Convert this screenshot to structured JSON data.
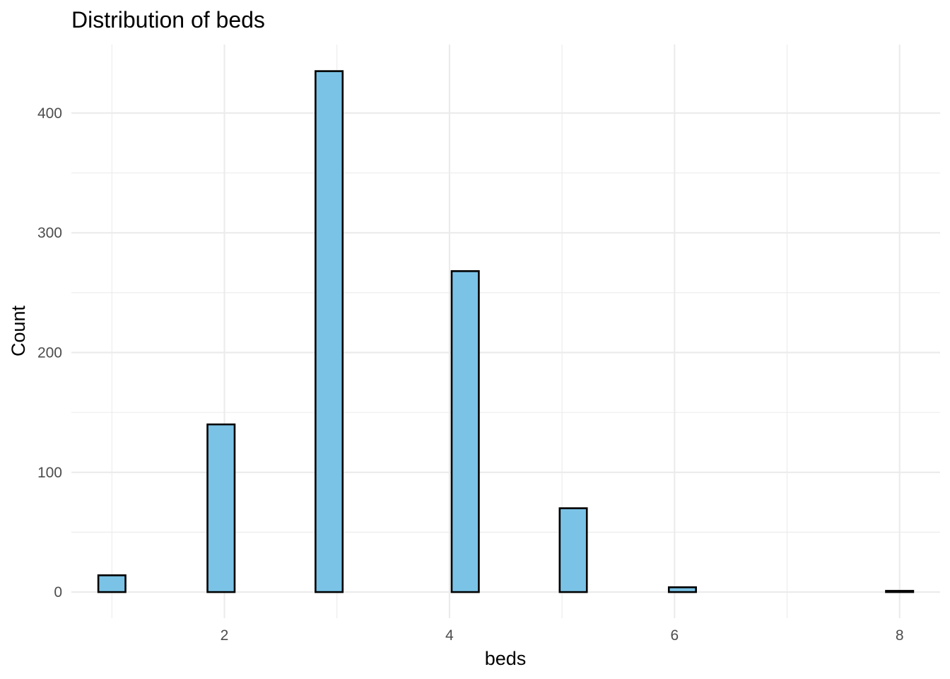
{
  "chart_data": {
    "type": "bar",
    "title": "Distribution of beds",
    "xlabel": "beds",
    "ylabel": "Count",
    "bar_color": "#7AC3E6",
    "outline_color": "#000000",
    "bins": 30,
    "xlim": [
      0.64,
      8.36
    ],
    "ylim": [
      -21.8,
      457.2
    ],
    "x_ticks": [
      2,
      4,
      6,
      8
    ],
    "y_ticks": [
      0,
      100,
      200,
      300,
      400
    ],
    "x_minor_ticks": [
      1,
      3,
      5,
      7
    ],
    "y_minor_ticks": [
      50,
      150,
      250,
      350
    ],
    "bars": [
      {
        "x": 1,
        "count": 14
      },
      {
        "x": 1.24,
        "count": 0
      },
      {
        "x": 1.48,
        "count": 0
      },
      {
        "x": 1.72,
        "count": 0
      },
      {
        "x": 1.97,
        "count": 140
      },
      {
        "x": 2.21,
        "count": 0
      },
      {
        "x": 2.45,
        "count": 0
      },
      {
        "x": 2.69,
        "count": 0
      },
      {
        "x": 2.93,
        "count": 435
      },
      {
        "x": 3.17,
        "count": 0
      },
      {
        "x": 3.41,
        "count": 0
      },
      {
        "x": 3.66,
        "count": 0
      },
      {
        "x": 3.9,
        "count": 0
      },
      {
        "x": 4.14,
        "count": 268
      },
      {
        "x": 4.38,
        "count": 0
      },
      {
        "x": 4.62,
        "count": 0
      },
      {
        "x": 4.86,
        "count": 0
      },
      {
        "x": 5.1,
        "count": 70
      },
      {
        "x": 5.34,
        "count": 0
      },
      {
        "x": 5.59,
        "count": 0
      },
      {
        "x": 5.83,
        "count": 0
      },
      {
        "x": 6.07,
        "count": 4
      },
      {
        "x": 6.31,
        "count": 0
      },
      {
        "x": 6.55,
        "count": 0
      },
      {
        "x": 6.79,
        "count": 0
      },
      {
        "x": 7.03,
        "count": 0
      },
      {
        "x": 7.28,
        "count": 0
      },
      {
        "x": 7.52,
        "count": 0
      },
      {
        "x": 7.76,
        "count": 0
      },
      {
        "x": 8.0,
        "count": 1
      }
    ],
    "grid": true,
    "legend": "none"
  }
}
